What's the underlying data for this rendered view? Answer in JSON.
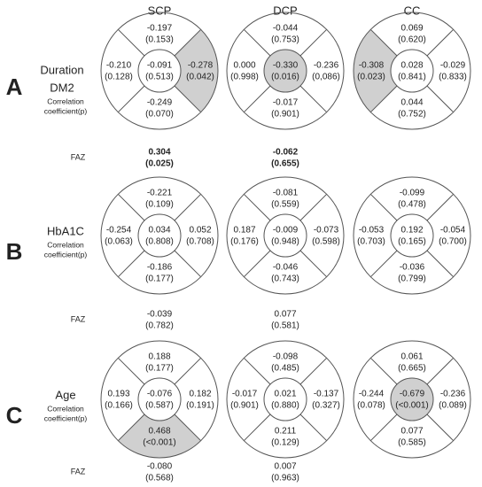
{
  "columns": [
    "SCP",
    "DCP",
    "CC"
  ],
  "rows": [
    {
      "letter": "A",
      "label": [
        "Duration",
        "DM2"
      ],
      "note": [
        "Correlation",
        "coefficient(p)"
      ],
      "circles": [
        {
          "top": {
            "r": "-0.197",
            "p": "(0.153)"
          },
          "left": {
            "r": "-0.210",
            "p": "(0.128)"
          },
          "center": {
            "r": "-0.091",
            "p": "(0.513)"
          },
          "right": {
            "r": "-0.278",
            "p": "(0.042)",
            "highlight": true
          },
          "bottom": {
            "r": "-0.249",
            "p": "(0.070)"
          }
        },
        {
          "top": {
            "r": "-0.044",
            "p": "(0.753)"
          },
          "left": {
            "r": "0.000",
            "p": "(0.998)"
          },
          "center": {
            "r": "-0.330",
            "p": "(0.016)",
            "highlight": true
          },
          "right": {
            "r": "-0.236",
            "p": "(0,086)"
          },
          "bottom": {
            "r": "-0.017",
            "p": "(0.901)"
          }
        },
        {
          "top": {
            "r": "0.069",
            "p": "(0.620)"
          },
          "left": {
            "r": "-0.308",
            "p": "(0.023)",
            "highlight": true
          },
          "center": {
            "r": "0.028",
            "p": "(0.841)"
          },
          "right": {
            "r": "-0.029",
            "p": "(0.833)"
          },
          "bottom": {
            "r": "0.044",
            "p": "(0.752)"
          }
        }
      ],
      "faz": {
        "label": "FAZ",
        "values": [
          {
            "r": "0.304",
            "p": "(0.025)",
            "bold": true
          },
          {
            "r": "-0.062",
            "p": "(0.655)",
            "bold": true
          }
        ]
      }
    },
    {
      "letter": "B",
      "label": [
        "HbA1C"
      ],
      "note": [
        "Correlation",
        "coefficient(p)"
      ],
      "circles": [
        {
          "top": {
            "r": "-0.221",
            "p": "(0.109)"
          },
          "left": {
            "r": "-0.254",
            "p": "(0.063)"
          },
          "center": {
            "r": "0.034",
            "p": "(0.808)"
          },
          "right": {
            "r": "0.052",
            "p": "(0.708)"
          },
          "bottom": {
            "r": "-0.186",
            "p": "(0.177)"
          }
        },
        {
          "top": {
            "r": "-0.081",
            "p": "(0.559)"
          },
          "left": {
            "r": "0.187",
            "p": "(0.176)"
          },
          "center": {
            "r": "-0.009",
            "p": "(0.948)"
          },
          "right": {
            "r": "-0.073",
            "p": "(0.598)"
          },
          "bottom": {
            "r": "-0.046",
            "p": "(0.743)"
          }
        },
        {
          "top": {
            "r": "-0.099",
            "p": "(0.478)"
          },
          "left": {
            "r": "-0.053",
            "p": "(0.703)"
          },
          "center": {
            "r": "0.192",
            "p": "(0.165)"
          },
          "right": {
            "r": "-0.054",
            "p": "(0.700)"
          },
          "bottom": {
            "r": "-0.036",
            "p": "(0.799)"
          }
        }
      ],
      "faz": {
        "label": "FAZ",
        "values": [
          {
            "r": "-0.039",
            "p": "(0.782)"
          },
          {
            "r": "0.077",
            "p": "(0.581)"
          }
        ]
      }
    },
    {
      "letter": "C",
      "label": [
        "Age"
      ],
      "note": [
        "Correlation",
        "coefficient(p)"
      ],
      "circles": [
        {
          "top": {
            "r": "0.188",
            "p": "(0.177)"
          },
          "left": {
            "r": "0.193",
            "p": "(0.166)"
          },
          "center": {
            "r": "-0.076",
            "p": "(0.587)"
          },
          "right": {
            "r": "0.182",
            "p": "(0.191)"
          },
          "bottom": {
            "r": "0.468",
            "p": "(<0.001)",
            "highlight": true
          }
        },
        {
          "top": {
            "r": "-0.098",
            "p": "(0.485)"
          },
          "left": {
            "r": "-0.017",
            "p": "(0.901)"
          },
          "center": {
            "r": "0.021",
            "p": "(0.880)"
          },
          "right": {
            "r": "-0.137",
            "p": "(0.327)"
          },
          "bottom": {
            "r": "0.211",
            "p": "(0.129)"
          }
        },
        {
          "top": {
            "r": "0.061",
            "p": "(0.665)"
          },
          "left": {
            "r": "-0.244",
            "p": "(0.078)"
          },
          "center": {
            "r": "-0.679",
            "p": "(<0.001)",
            "highlight": true
          },
          "right": {
            "r": "-0.236",
            "p": "(0.089)"
          },
          "bottom": {
            "r": "0.077",
            "p": "(0.585)"
          }
        }
      ],
      "faz": {
        "label": "FAZ",
        "values": [
          {
            "r": "-0.080",
            "p": "(0.568)"
          },
          {
            "r": "0.007",
            "p": "(0.963)"
          }
        ]
      }
    }
  ]
}
